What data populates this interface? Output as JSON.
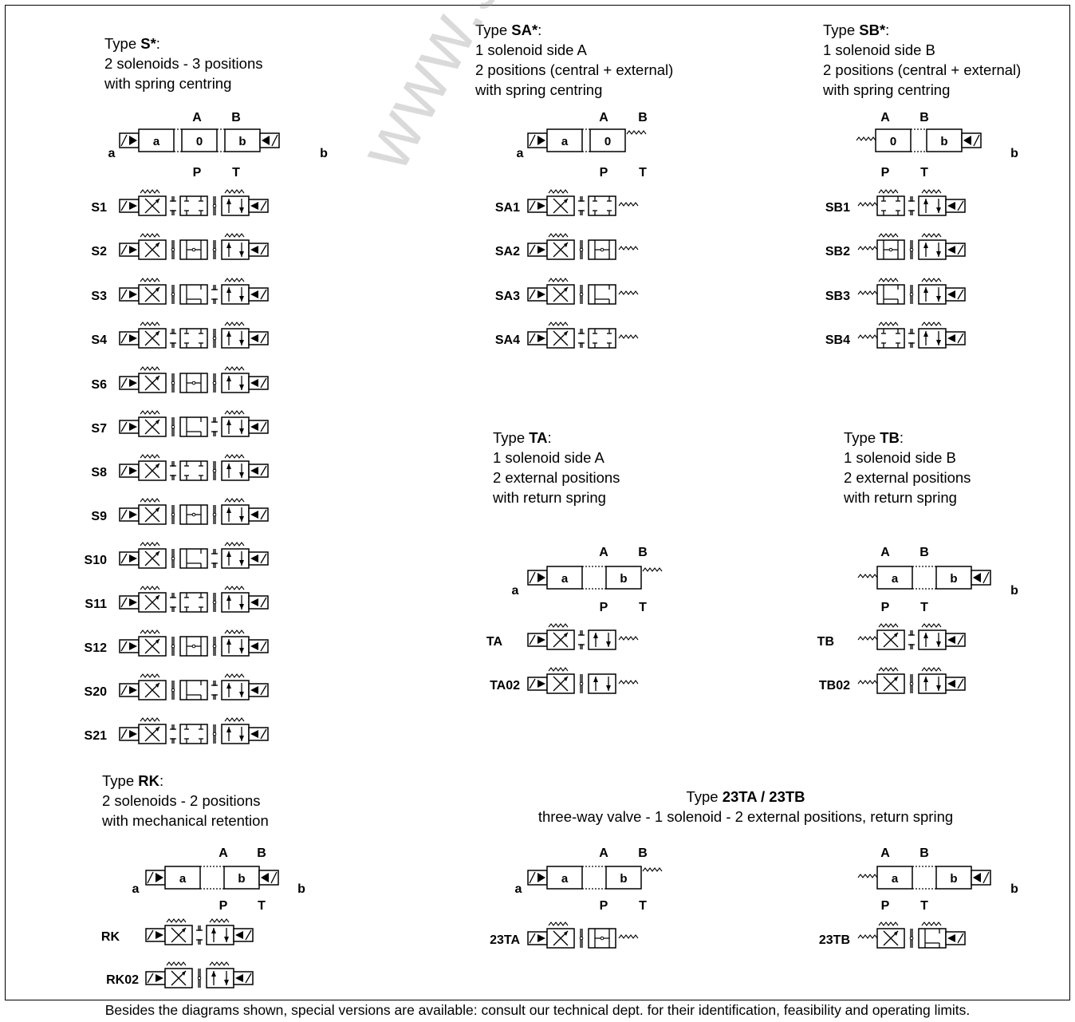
{
  "groups": {
    "s": {
      "label": "Type ",
      "type": "S*",
      "suffix": ":",
      "lines": [
        "2 solenoids - 3 positions",
        "with spring centring"
      ]
    },
    "sa": {
      "label": "Type ",
      "type": "SA*",
      "suffix": ":",
      "lines": [
        "1 solenoid side A",
        "2 positions (central + external)",
        "with spring centring"
      ]
    },
    "sb": {
      "label": "Type ",
      "type": "SB*",
      "suffix": ":",
      "lines": [
        "1 solenoid side B",
        "2 positions (central + external)",
        "with spring centring"
      ]
    },
    "ta": {
      "label": "Type ",
      "type": "TA",
      "suffix": ":",
      "lines": [
        "1 solenoid side A",
        "2 external positions",
        "with return spring"
      ]
    },
    "tb": {
      "label": "Type ",
      "type": "TB",
      "suffix": ":",
      "lines": [
        "1 solenoid side B",
        "2 external positions",
        "with return spring"
      ]
    },
    "rk": {
      "label": "Type ",
      "type": "RK",
      "suffix": ":",
      "lines": [
        "2 solenoids  - 2 positions",
        "with mechanical retention"
      ]
    },
    "t23": {
      "label": "Type ",
      "type": "23TA / 23TB",
      "suffix": "",
      "lines": [
        "three-way valve - 1 solenoid - 2 external positions, return spring"
      ]
    }
  },
  "ports": {
    "A": "A",
    "B": "B",
    "P": "P",
    "T": "T",
    "sol_a": "a",
    "sol_b": "b",
    "pos_a": "a",
    "pos_0": "0",
    "pos_b": "b"
  },
  "codes": {
    "s": [
      "S1",
      "S2",
      "S3",
      "S4",
      "S6",
      "S7",
      "S8",
      "S9",
      "S10",
      "S11",
      "S12",
      "S20",
      "S21"
    ],
    "sa": [
      "SA1",
      "SA2",
      "SA3",
      "SA4"
    ],
    "sb": [
      "SB1",
      "SB2",
      "SB3",
      "SB4"
    ],
    "ta": [
      "TA",
      "TA02"
    ],
    "tb": [
      "TB",
      "TB02"
    ],
    "rk": [
      "RK",
      "RK02"
    ],
    "t23": [
      "23TA",
      "23TB"
    ]
  },
  "footer": "Besides the diagrams shown, special versions are available: consult our technical dept. for their identification, feasibility and operating limits.",
  "watermark": "www.sumy.ir"
}
